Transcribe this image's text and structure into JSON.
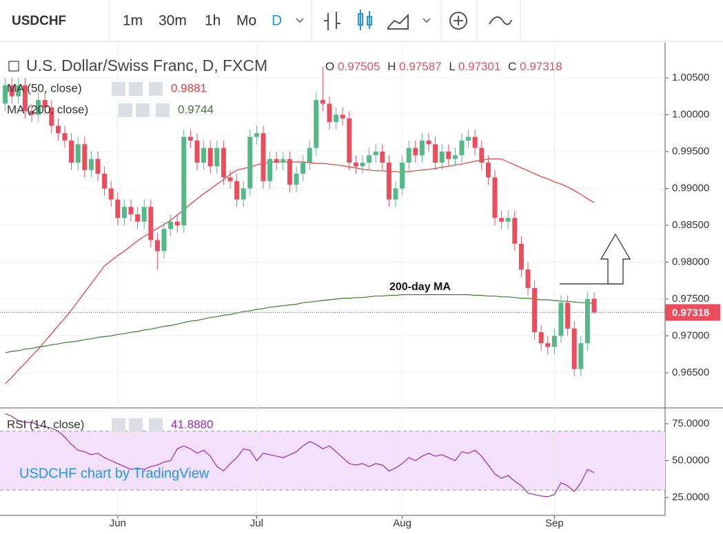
{
  "toolbar": {
    "symbol": "USDCHF",
    "intervals": [
      "1m",
      "30m",
      "1h",
      "Mo",
      "D"
    ]
  },
  "chart_data": {
    "type": "candlestick",
    "title": "U.S. Dollar/Swiss Franc, D, FXCM",
    "ohlc_keys": [
      "O",
      "H",
      "L",
      "C"
    ],
    "watermark": "USDCHF chart by TradingView",
    "annotation": "200-day MA",
    "up_color": "#53b987",
    "down_color": "#eb4d5c",
    "last_price_color": "#eb4d5c",
    "grid": true,
    "categories": [
      null,
      null,
      null,
      null,
      null,
      null,
      null,
      null,
      null,
      null,
      null,
      null,
      null,
      null,
      null,
      null,
      null,
      "Jun",
      null,
      null,
      null,
      null,
      null,
      null,
      null,
      null,
      null,
      null,
      null,
      null,
      null,
      null,
      null,
      null,
      null,
      null,
      null,
      null,
      "Jul",
      null,
      null,
      null,
      null,
      null,
      null,
      null,
      null,
      null,
      null,
      null,
      null,
      null,
      null,
      null,
      null,
      null,
      null,
      null,
      null,
      null,
      "Aug",
      null,
      null,
      null,
      null,
      null,
      null,
      null,
      null,
      null,
      null,
      null,
      null,
      null,
      null,
      null,
      null,
      null,
      null,
      null,
      null,
      null,
      null,
      "Sep",
      null,
      null,
      null,
      null,
      null,
      null
    ],
    "open": [
      1.0015,
      1.004,
      1.0025,
      1.004,
      1.0005,
      1.0,
      1.002,
      1.001,
      0.9985,
      0.9975,
      0.9965,
      0.9935,
      0.996,
      0.9925,
      0.994,
      0.992,
      0.99,
      0.9885,
      0.986,
      0.9875,
      0.9865,
      0.9855,
      0.9875,
      0.983,
      0.9815,
      0.9845,
      0.9855,
      0.985,
      0.997,
      0.9965,
      0.9935,
      0.9955,
      0.993,
      0.9955,
      0.9915,
      0.991,
      0.9885,
      0.99,
      0.997,
      0.9975,
      0.991,
      0.994,
      0.9935,
      0.994,
      0.9905,
      0.992,
      0.9935,
      0.9955,
      1.002,
      1.0015,
      0.999,
      1.0,
      0.9995,
      0.9935,
      0.993,
      0.9935,
      0.9945,
      0.995,
      0.9935,
      0.9885,
      0.99,
      0.9935,
      0.9955,
      0.9945,
      0.9965,
      0.996,
      0.9935,
      0.995,
      0.994,
      0.9945,
      0.9965,
      0.997,
      0.9955,
      0.9935,
      0.9915,
      0.986,
      0.9855,
      0.986,
      0.9825,
      0.979,
      0.9765,
      0.9705,
      0.969,
      0.9685,
      0.97,
      0.9745,
      0.971,
      0.9655,
      0.969,
      0.97505
    ],
    "high": [
      1.005,
      1.005,
      1.005,
      1.005,
      1.0015,
      1.003,
      1.003,
      1.002,
      0.9995,
      0.9985,
      0.9975,
      0.997,
      0.997,
      0.995,
      0.995,
      0.993,
      0.991,
      0.9895,
      0.9885,
      0.9885,
      0.9875,
      0.9885,
      0.9885,
      0.984,
      0.9855,
      0.9865,
      0.9865,
      0.998,
      0.998,
      0.9975,
      0.9965,
      0.9965,
      0.9965,
      0.9965,
      0.9925,
      0.992,
      0.991,
      0.998,
      0.9985,
      0.9985,
      0.995,
      0.995,
      0.995,
      0.995,
      0.993,
      0.9945,
      0.9965,
      1.003,
      1.0065,
      1.0025,
      1.001,
      1.001,
      1.0005,
      0.9945,
      0.9945,
      0.9955,
      0.996,
      0.996,
      0.9945,
      0.991,
      0.9945,
      0.9965,
      0.9965,
      0.9975,
      0.9975,
      0.997,
      0.996,
      0.996,
      0.9955,
      0.9975,
      0.998,
      0.998,
      0.9965,
      0.9945,
      0.9925,
      0.987,
      0.987,
      0.987,
      0.9835,
      0.98,
      0.9775,
      0.9715,
      0.97,
      0.971,
      0.9755,
      0.9755,
      0.972,
      0.97,
      0.976,
      0.97587
    ],
    "low": [
      1.0005,
      1.0015,
      1.0015,
      0.9995,
      0.999,
      0.999,
      1.0,
      0.9975,
      0.9965,
      0.9955,
      0.9925,
      0.9925,
      0.9915,
      0.9915,
      0.991,
      0.989,
      0.9875,
      0.985,
      0.985,
      0.9855,
      0.9845,
      0.9845,
      0.982,
      0.979,
      0.9805,
      0.9835,
      0.984,
      0.984,
      0.9955,
      0.9925,
      0.9925,
      0.992,
      0.992,
      0.9905,
      0.99,
      0.9875,
      0.9875,
      0.989,
      0.996,
      0.99,
      0.99,
      0.9925,
      0.9925,
      0.9895,
      0.9895,
      0.991,
      0.9925,
      0.9945,
      1.0005,
      0.998,
      0.998,
      0.9985,
      0.9925,
      0.992,
      0.992,
      0.9925,
      0.9935,
      0.9925,
      0.9875,
      0.9875,
      0.989,
      0.9925,
      0.9935,
      0.9935,
      0.995,
      0.9925,
      0.9925,
      0.993,
      0.993,
      0.9935,
      0.9955,
      0.9945,
      0.9925,
      0.9905,
      0.985,
      0.9845,
      0.9845,
      0.9815,
      0.978,
      0.9755,
      0.9695,
      0.968,
      0.9675,
      0.9675,
      0.969,
      0.97,
      0.9645,
      0.9645,
      0.968,
      0.97301
    ],
    "close": [
      1.004,
      1.0025,
      1.004,
      1.0005,
      1.0,
      1.002,
      1.001,
      0.9985,
      0.9975,
      0.9965,
      0.9935,
      0.996,
      0.9925,
      0.994,
      0.992,
      0.99,
      0.9885,
      0.986,
      0.9875,
      0.9865,
      0.9855,
      0.9875,
      0.983,
      0.9815,
      0.9845,
      0.9855,
      0.985,
      0.997,
      0.9965,
      0.9935,
      0.9955,
      0.993,
      0.9955,
      0.9915,
      0.991,
      0.9885,
      0.99,
      0.997,
      0.9975,
      0.991,
      0.994,
      0.9935,
      0.994,
      0.9905,
      0.992,
      0.9935,
      0.9955,
      1.002,
      1.0015,
      0.999,
      1.0,
      0.9995,
      0.9935,
      0.993,
      0.9935,
      0.9945,
      0.995,
      0.9935,
      0.9885,
      0.99,
      0.9935,
      0.9955,
      0.9945,
      0.9965,
      0.996,
      0.9935,
      0.995,
      0.994,
      0.9945,
      0.9965,
      0.997,
      0.9955,
      0.9935,
      0.9915,
      0.986,
      0.9855,
      0.986,
      0.9825,
      0.979,
      0.9765,
      0.9705,
      0.969,
      0.9685,
      0.97,
      0.9745,
      0.971,
      0.9655,
      0.969,
      0.975,
      0.97318
    ],
    "series": [
      {
        "name": "MA (50, close)",
        "color": "#e53935",
        "values": [
          0.9635,
          0.9644,
          0.9654,
          0.9663,
          0.9673,
          0.9682,
          0.9693,
          0.9703,
          0.9714,
          0.9724,
          0.9735,
          0.9747,
          0.9759,
          0.9771,
          0.9783,
          0.9795,
          0.9802,
          0.9809,
          0.9815,
          0.9822,
          0.9829,
          0.9835,
          0.984,
          0.9846,
          0.9851,
          0.9857,
          0.9864,
          0.9871,
          0.9879,
          0.9886,
          0.9893,
          0.9899,
          0.9906,
          0.9912,
          0.9919,
          0.9925,
          0.9927,
          0.9929,
          0.9932,
          0.9934,
          0.9936,
          0.9936,
          0.9936,
          0.9936,
          0.9936,
          0.9936,
          0.9935,
          0.9934,
          0.9934,
          0.9933,
          0.9932,
          0.9931,
          0.9929,
          0.9928,
          0.9926,
          0.9925,
          0.9924,
          0.9924,
          0.9923,
          0.9923,
          0.9922,
          0.9923,
          0.9924,
          0.9925,
          0.9926,
          0.9927,
          0.9929,
          0.993,
          0.9932,
          0.9933,
          0.9935,
          0.9937,
          0.9938,
          0.994,
          0.994,
          0.994,
          0.9936,
          0.9932,
          0.9928,
          0.9924,
          0.992,
          0.9916,
          0.9913,
          0.9909,
          0.9906,
          0.9902,
          0.9897,
          0.9892,
          0.9886,
          0.9881
        ]
      },
      {
        "name": "MA (200, close)",
        "color": "#3a7d2a",
        "values": [
          0.9677,
          0.9679,
          0.968,
          0.9682,
          0.9683,
          0.9685,
          0.9686,
          0.9688,
          0.9689,
          0.9691,
          0.9692,
          0.9693,
          0.9695,
          0.9696,
          0.9698,
          0.9699,
          0.97,
          0.9702,
          0.9703,
          0.9705,
          0.9706,
          0.9708,
          0.9709,
          0.9711,
          0.9713,
          0.9714,
          0.9716,
          0.9718,
          0.972,
          0.9721,
          0.9723,
          0.9725,
          0.9726,
          0.9728,
          0.9729,
          0.9731,
          0.9733,
          0.9734,
          0.9736,
          0.9737,
          0.9739,
          0.974,
          0.9741,
          0.9742,
          0.9743,
          0.9745,
          0.9746,
          0.9747,
          0.9748,
          0.9749,
          0.975,
          0.9751,
          0.9751,
          0.9752,
          0.9752,
          0.9753,
          0.9754,
          0.9754,
          0.9755,
          0.9755,
          0.9756,
          0.9756,
          0.9756,
          0.9756,
          0.9756,
          0.9756,
          0.9756,
          0.9756,
          0.9756,
          0.9756,
          0.9756,
          0.9755,
          0.9755,
          0.9754,
          0.9754,
          0.9753,
          0.9753,
          0.9752,
          0.9751,
          0.9751,
          0.975,
          0.9749,
          0.9749,
          0.9748,
          0.9747,
          0.9747,
          0.9746,
          0.9745,
          0.9745,
          0.9744
        ]
      }
    ],
    "ylim": [
      0.96023,
      1.00977
    ],
    "yticks": [
      {
        "value": 0.965,
        "label": "0.96500"
      },
      {
        "value": 0.97,
        "label": "0.97000"
      },
      {
        "value": 0.975,
        "label": "0.97500"
      },
      {
        "value": 0.98,
        "label": "0.98000"
      },
      {
        "value": 0.985,
        "label": "0.98500"
      },
      {
        "value": 0.99,
        "label": "0.99000"
      },
      {
        "value": 0.995,
        "label": "0.99500"
      },
      {
        "value": 1.0,
        "label": "1.00000"
      },
      {
        "value": 1.005,
        "label": "1.00500"
      }
    ],
    "rsi": {
      "type": "line",
      "name": "RSI (14, close)",
      "color": "#9c27b0",
      "legend_label": "41.8880",
      "band": [
        30,
        70
      ],
      "band_color": "#f3e0fa",
      "values": [
        82,
        80,
        77,
        76,
        76,
        74,
        73,
        72,
        70,
        66,
        61,
        57,
        56,
        54,
        55,
        52,
        50,
        48,
        46,
        44,
        45,
        44,
        46,
        47,
        49,
        50,
        58,
        60,
        58,
        55,
        57,
        53,
        46,
        43,
        48,
        52,
        58,
        57,
        50,
        55,
        54,
        53,
        52,
        54,
        56,
        60,
        63,
        61,
        58,
        60,
        56,
        52,
        48,
        47,
        48,
        46,
        48,
        47,
        43,
        45,
        48,
        52,
        50,
        53,
        55,
        53,
        54,
        52,
        50,
        56,
        55,
        57,
        53,
        47,
        41,
        38,
        40,
        36,
        33,
        28,
        27,
        26,
        25.5,
        27,
        35,
        33,
        29,
        35,
        44,
        41.888
      ],
      "ylim": [
        12.85,
        84.81
      ],
      "yticks": [
        {
          "value": 25,
          "label": "25.0000"
        },
        {
          "value": 50,
          "label": "50.0000"
        },
        {
          "value": 75,
          "label": "75.0000"
        }
      ]
    }
  }
}
